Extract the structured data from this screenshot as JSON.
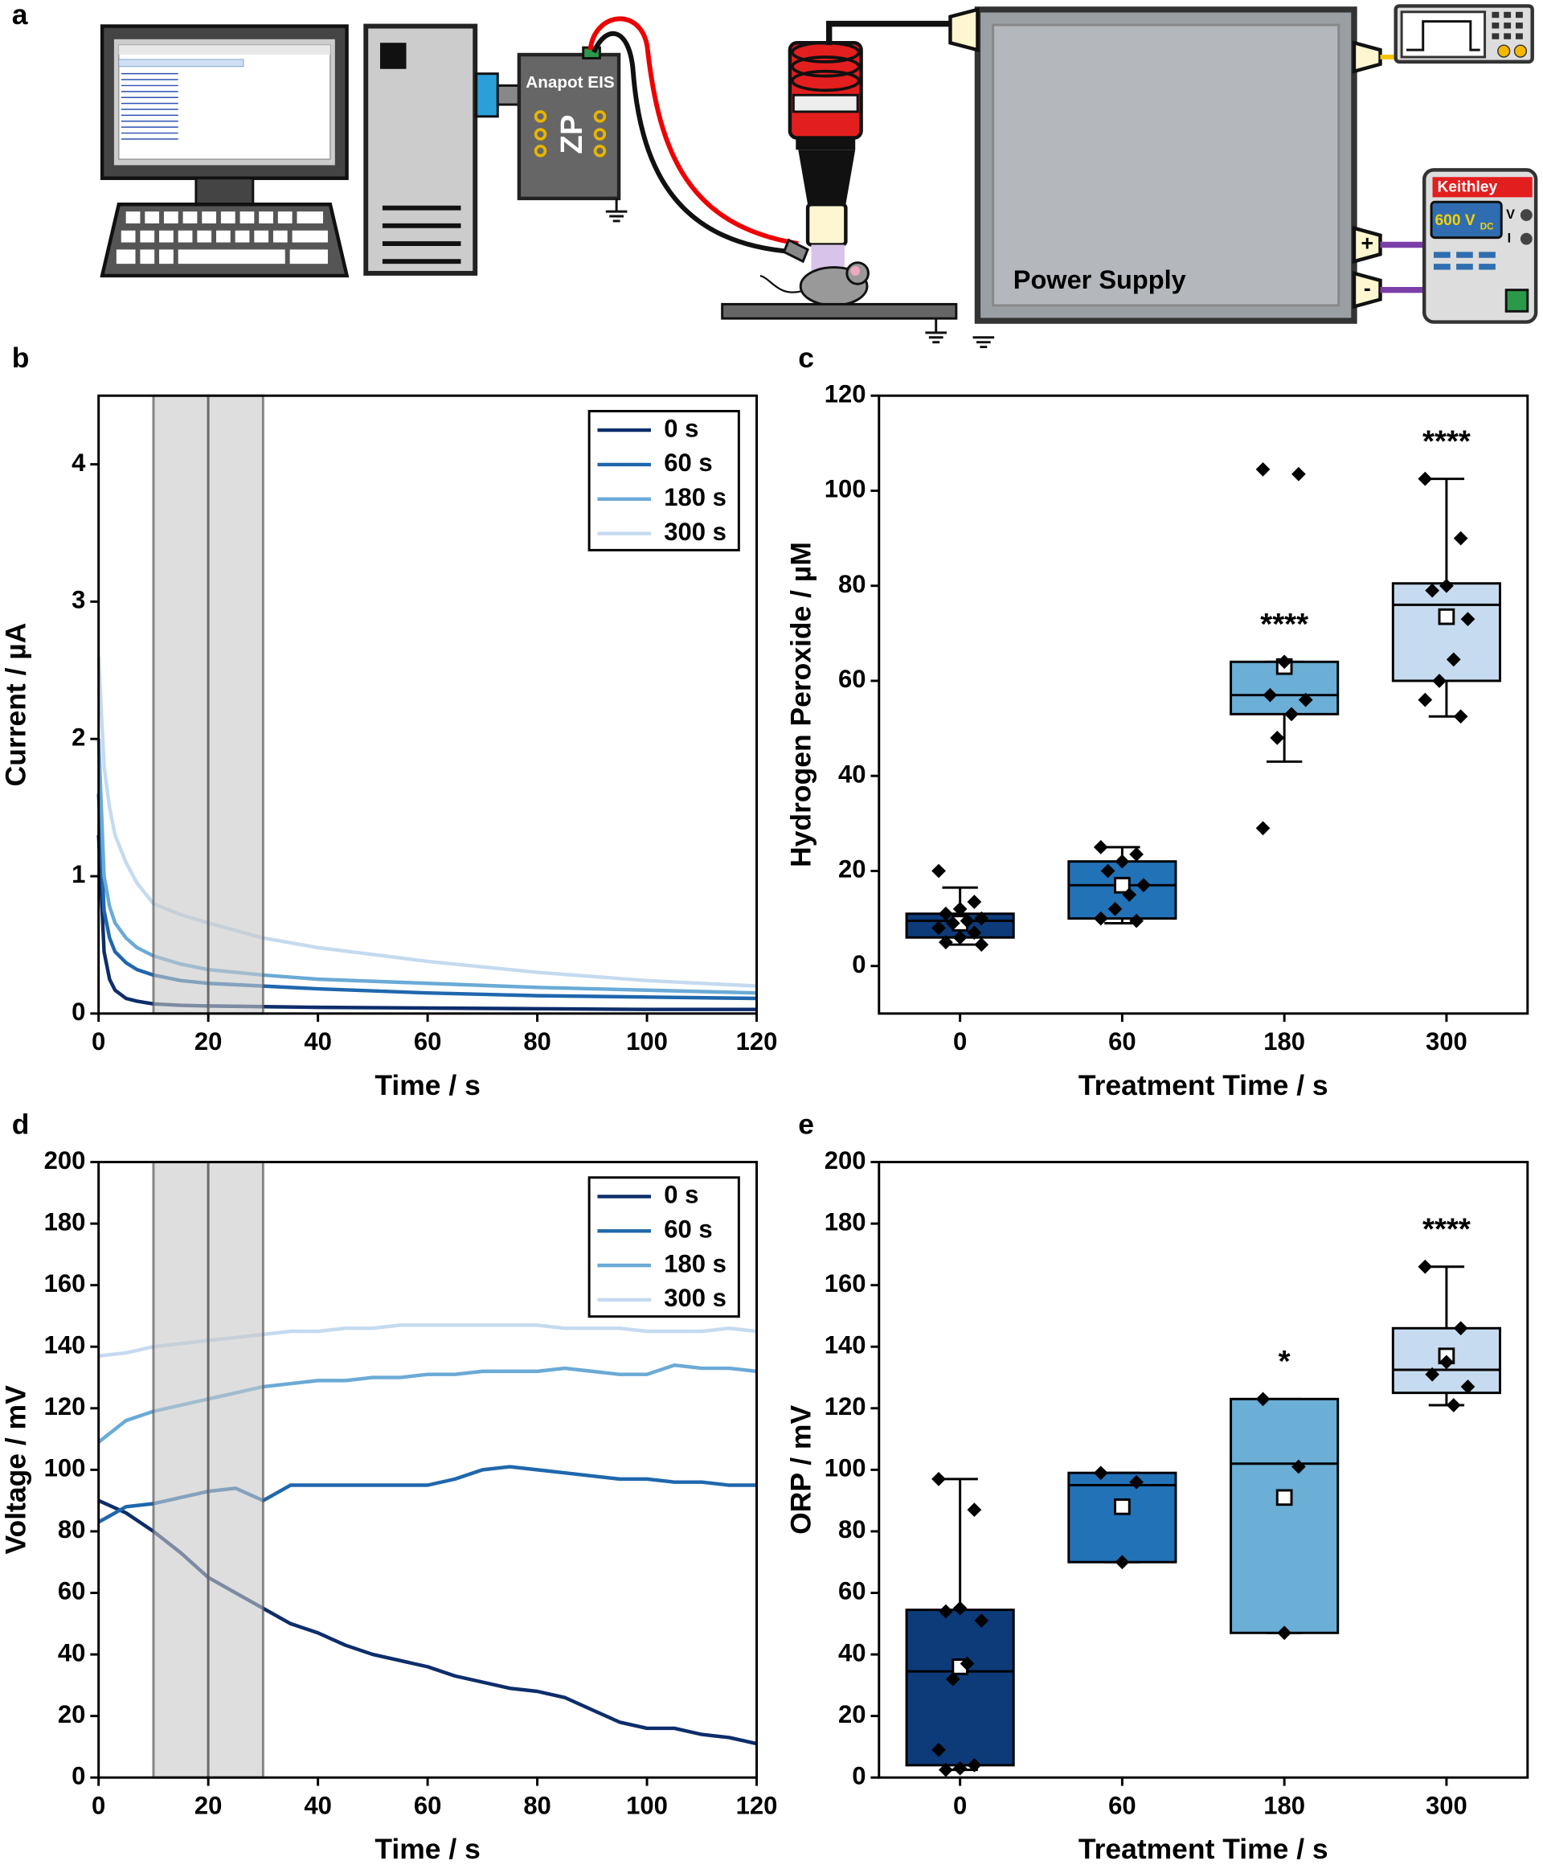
{
  "diagram": {
    "panel": "a",
    "device": "Anapot EIS",
    "device_logo": "ZP",
    "power_supply": "Power Supply",
    "meter_brand": "Keithley",
    "meter_reading": "600 V",
    "meter_reading_sub": "DC",
    "meter_v": "V",
    "meter_i": "I",
    "plus": "+",
    "minus": "-"
  },
  "chart_data": [
    {
      "type": "line",
      "panel": "b",
      "xlabel": "Time / s",
      "ylabel": "Current / µA",
      "x": [
        0,
        1,
        2,
        3,
        5,
        7,
        10,
        15,
        20,
        30,
        40,
        60,
        80,
        100,
        120
      ],
      "series": [
        {
          "name": "0 s",
          "color": "#0d2d6b",
          "values": [
            1.3,
            0.45,
            0.25,
            0.17,
            0.11,
            0.09,
            0.07,
            0.06,
            0.055,
            0.05,
            0.045,
            0.04,
            0.035,
            0.03,
            0.03
          ]
        },
        {
          "name": "60 s",
          "color": "#1f67ad",
          "values": [
            1.6,
            0.75,
            0.55,
            0.45,
            0.37,
            0.32,
            0.28,
            0.24,
            0.22,
            0.2,
            0.18,
            0.15,
            0.13,
            0.12,
            0.11
          ]
        },
        {
          "name": "180 s",
          "color": "#6aaad6",
          "values": [
            2.0,
            1.0,
            0.78,
            0.66,
            0.55,
            0.48,
            0.42,
            0.36,
            0.32,
            0.28,
            0.25,
            0.22,
            0.19,
            0.17,
            0.15
          ]
        },
        {
          "name": "300 s",
          "color": "#c5daef",
          "values": [
            2.6,
            1.8,
            1.5,
            1.3,
            1.1,
            0.95,
            0.8,
            0.72,
            0.66,
            0.55,
            0.48,
            0.38,
            0.3,
            0.24,
            0.2
          ]
        }
      ],
      "xlim": [
        0,
        120
      ],
      "xticks": [
        0,
        20,
        40,
        60,
        80,
        100,
        120
      ],
      "ylim": [
        0,
        4.5
      ],
      "yticks": [
        0,
        1,
        2,
        3,
        4
      ],
      "legend": "upper right",
      "shaded_regions": [
        [
          10,
          20
        ],
        [
          20,
          30
        ]
      ]
    },
    {
      "type": "box",
      "panel": "c",
      "xlabel": "Treatment Time / s",
      "ylabel": "Hydrogen Peroxide / µM",
      "categories": [
        "0",
        "60",
        "180",
        "300"
      ],
      "colors": [
        "#0d3b7a",
        "#2272b8",
        "#6baed6",
        "#c6dbef"
      ],
      "boxes": [
        {
          "whislo": 4.5,
          "q1": 6,
          "median": 9.5,
          "q3": 11,
          "whishi": 16.5,
          "mean": 9,
          "points": [
            20,
            13.5,
            12,
            11,
            10,
            9.5,
            9,
            8,
            7,
            6,
            5,
            4.5
          ]
        },
        {
          "whislo": 9,
          "q1": 10,
          "median": 17,
          "q3": 22,
          "whishi": 25,
          "mean": 17,
          "points": [
            25,
            23.5,
            22,
            20,
            17,
            15,
            12,
            10,
            9.5
          ]
        },
        {
          "whislo": 43,
          "q1": 53,
          "median": 57,
          "q3": 64,
          "whishi": 64,
          "mean": 63,
          "points": [
            104.5,
            103.5,
            64,
            57,
            56,
            53,
            48,
            29
          ]
        },
        {
          "whislo": 52.5,
          "q1": 60,
          "median": 76,
          "q3": 80.5,
          "whishi": 102.5,
          "mean": 73.5,
          "points": [
            102.5,
            90,
            80,
            79,
            73,
            64.5,
            60,
            56,
            52.5
          ]
        }
      ],
      "significance": [
        null,
        null,
        "****",
        "****"
      ],
      "ylim": [
        -10,
        120
      ],
      "yticks": [
        0,
        20,
        40,
        60,
        80,
        100,
        120
      ]
    },
    {
      "type": "line",
      "panel": "d",
      "xlabel": "Time / s",
      "ylabel": "Voltage / mV",
      "x": [
        0,
        5,
        10,
        15,
        20,
        25,
        30,
        35,
        40,
        45,
        50,
        55,
        60,
        65,
        70,
        75,
        80,
        85,
        90,
        95,
        100,
        105,
        110,
        115,
        120
      ],
      "series": [
        {
          "name": "0 s",
          "color": "#0d2d6b",
          "values": [
            90,
            86,
            80,
            73,
            65,
            60,
            55,
            50,
            47,
            43,
            40,
            38,
            36,
            33,
            31,
            29,
            28,
            26,
            22,
            18,
            16,
            16,
            14,
            13,
            11
          ]
        },
        {
          "name": "60 s",
          "color": "#1f67ad",
          "values": [
            83,
            88,
            89,
            91,
            93,
            94,
            90,
            95,
            95,
            95,
            95,
            95,
            95,
            97,
            100,
            101,
            100,
            99,
            98,
            97,
            97,
            96,
            96,
            95,
            95
          ]
        },
        {
          "name": "180 s",
          "color": "#6aaad6",
          "values": [
            109,
            116,
            119,
            121,
            123,
            125,
            127,
            128,
            129,
            129,
            130,
            130,
            131,
            131,
            132,
            132,
            132,
            133,
            132,
            131,
            131,
            134,
            133,
            133,
            132
          ]
        },
        {
          "name": "300 s",
          "color": "#c5daef",
          "values": [
            137,
            138,
            140,
            141,
            142,
            143,
            144,
            145,
            145,
            146,
            146,
            147,
            147,
            147,
            147,
            147,
            147,
            146,
            146,
            146,
            145,
            145,
            145,
            146,
            145
          ]
        }
      ],
      "xlim": [
        0,
        120
      ],
      "xticks": [
        0,
        20,
        40,
        60,
        80,
        100,
        120
      ],
      "ylim": [
        0,
        200
      ],
      "yticks": [
        0,
        20,
        40,
        60,
        80,
        100,
        120,
        140,
        160,
        180,
        200
      ],
      "legend": "upper right",
      "shaded_regions": [
        [
          10,
          20
        ],
        [
          20,
          30
        ]
      ]
    },
    {
      "type": "box",
      "panel": "e",
      "xlabel": "Treatment Time / s",
      "ylabel": "ORP / mV",
      "categories": [
        "0",
        "60",
        "180",
        "300"
      ],
      "colors": [
        "#0d3b7a",
        "#2272b8",
        "#6baed6",
        "#c6dbef"
      ],
      "boxes": [
        {
          "whislo": 2.5,
          "q1": 4,
          "median": 34.5,
          "q3": 54.5,
          "whishi": 97,
          "mean": 36,
          "points": [
            97,
            87,
            55,
            54,
            51,
            37,
            32,
            9,
            4,
            3,
            2.5
          ]
        },
        {
          "whislo": 70,
          "q1": 70,
          "median": 95,
          "q3": 99,
          "whishi": 99,
          "mean": 88,
          "points": [
            99,
            96,
            70
          ]
        },
        {
          "whislo": 47,
          "q1": 47,
          "median": 102,
          "q3": 123,
          "whishi": 123,
          "mean": 91,
          "points": [
            123,
            101,
            47
          ]
        },
        {
          "whislo": 121,
          "q1": 125,
          "median": 132.5,
          "q3": 146,
          "whishi": 166,
          "mean": 137,
          "points": [
            166,
            146,
            135,
            131,
            127,
            121
          ]
        }
      ],
      "significance": [
        null,
        null,
        "*",
        "****"
      ],
      "ylim": [
        0,
        200
      ],
      "yticks": [
        0,
        20,
        40,
        60,
        80,
        100,
        120,
        140,
        160,
        180,
        200
      ]
    }
  ]
}
